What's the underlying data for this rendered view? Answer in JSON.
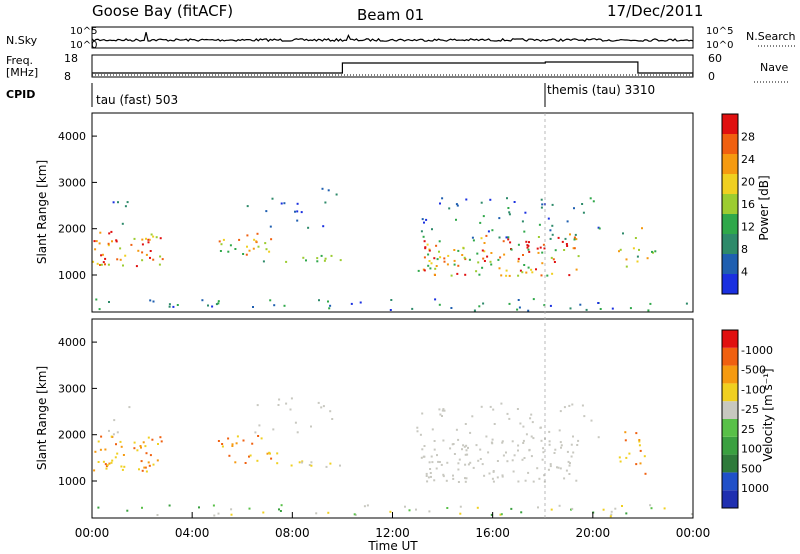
{
  "header": {
    "station": "Goose Bay (fitACF)",
    "beam": "Beam 01",
    "date": "17/Dec/2011"
  },
  "strip_labels": {
    "nsky": "N.Sky",
    "nsearch": "N.Search",
    "freq": "Freq.",
    "freq_unit": "[MHz]",
    "nave": "Nave",
    "cpid": "CPID",
    "nsky_ticks": [
      "10^5",
      "10^0"
    ],
    "nsearch_ticks": [
      "10^5",
      "10^0"
    ],
    "freq_ticks": [
      "18",
      "8"
    ],
    "nave_ticks": [
      "60",
      "0"
    ]
  },
  "cpid_modes": [
    {
      "label": "tau (fast) 503",
      "start_hour": 0
    },
    {
      "label": "themis (tau) 3310",
      "start_hour": 18.1
    }
  ],
  "chart_data": [
    {
      "type": "heatmap",
      "name": "power-panel",
      "ylabel": "Slant Range [km]",
      "ylim": [
        200,
        4500
      ],
      "xlim_hours": [
        0,
        24
      ],
      "y_ticks": [
        "1000",
        "2000",
        "3000",
        "4000"
      ],
      "colorbar_label": "Power [dB]",
      "colorbar_ticks": [
        "4",
        "8",
        "12",
        "16",
        "20",
        "24",
        "28"
      ],
      "colorbar_colors": [
        "#1a30e0",
        "#1f5fb0",
        "#2e8a6a",
        "#2fa84a",
        "#9ccc30",
        "#f0d020",
        "#f59a10",
        "#f06010",
        "#e01010"
      ]
    },
    {
      "type": "heatmap",
      "name": "velocity-panel",
      "ylabel": "Slant Range [km]",
      "ylim": [
        200,
        4500
      ],
      "xlim_hours": [
        0,
        24
      ],
      "y_ticks": [
        "1000",
        "2000",
        "3000",
        "4000"
      ],
      "colorbar_label": "Velocity [m s⁻¹]",
      "colorbar_ticks": [
        "1000",
        "500",
        "100",
        "25",
        "-25",
        "-100",
        "-500",
        "-1000"
      ],
      "colorbar_colors": [
        "#2030b0",
        "#2050c8",
        "#2e7a3a",
        "#3aa040",
        "#58c048",
        "#c8c8c0",
        "#f0d020",
        "#f59a10",
        "#f06010",
        "#e01010"
      ]
    }
  ],
  "xaxis": {
    "ticks": [
      "00:00",
      "04:00",
      "08:00",
      "12:00",
      "16:00",
      "20:00",
      "00:00"
    ],
    "label": "Time UT"
  }
}
